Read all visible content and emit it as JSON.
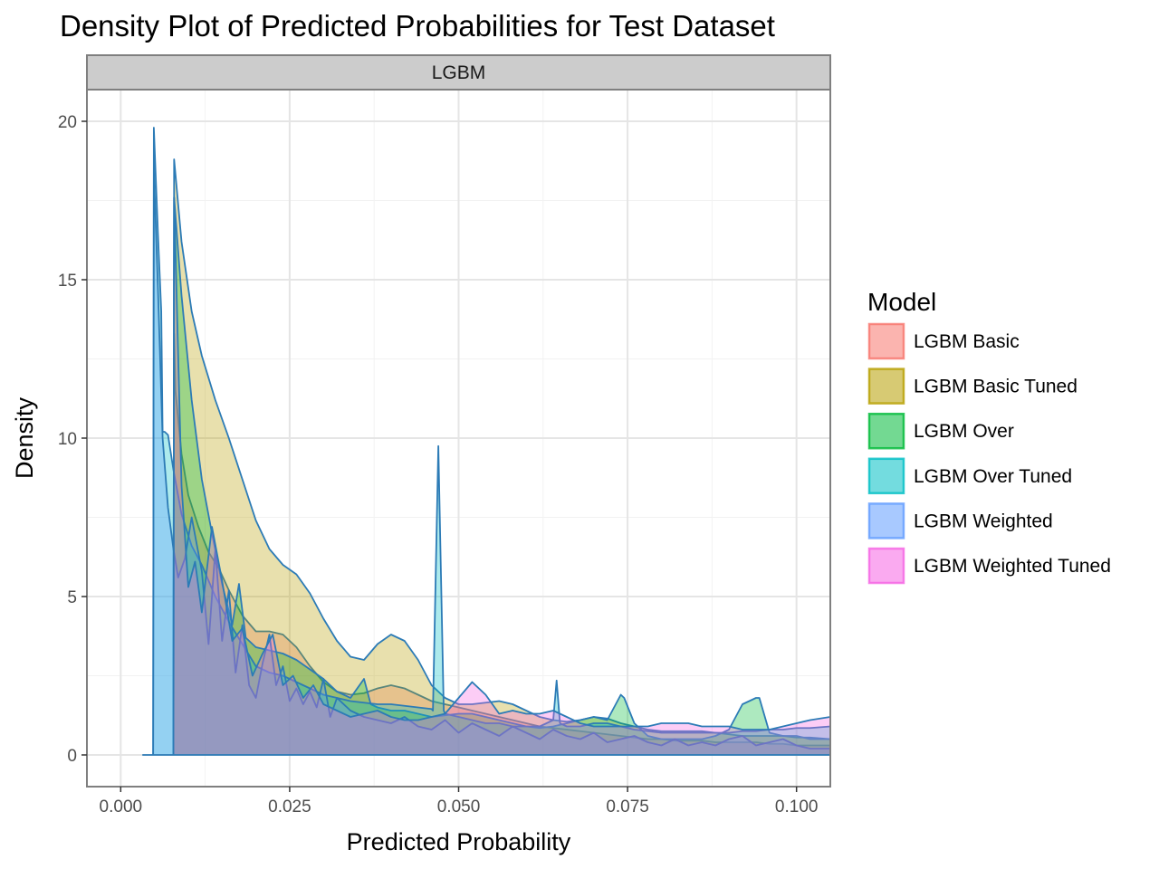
{
  "chart_data": {
    "type": "area",
    "title": "Density Plot of Predicted Probabilities for Test Dataset",
    "facet": "LGBM",
    "xlabel": "Predicted Probability",
    "ylabel": "Density",
    "xlim": [
      -0.005,
      0.105
    ],
    "ylim": [
      -1.0,
      21.0
    ],
    "x_ticks": [
      0.0,
      0.025,
      0.05,
      0.075,
      0.1
    ],
    "x_tick_labels": [
      "0.000",
      "0.025",
      "0.050",
      "0.075",
      "0.100"
    ],
    "y_ticks": [
      0,
      5,
      10,
      15,
      20
    ],
    "y_tick_labels": [
      "0",
      "5",
      "10",
      "15",
      "20"
    ],
    "grid": true,
    "legend_title": "Model",
    "legend_position": "right",
    "outline_color": "#2c7bb6",
    "series": [
      {
        "name": "LGBM Basic",
        "color": "#F8766D",
        "x": [
          0.0078,
          0.0079,
          0.0081,
          0.009,
          0.01,
          0.0115,
          0.013,
          0.0145,
          0.016,
          0.018,
          0.02,
          0.022,
          0.024,
          0.026,
          0.028,
          0.03,
          0.032,
          0.034,
          0.036,
          0.038,
          0.04,
          0.042,
          0.044,
          0.046,
          0.048,
          0.05,
          0.052,
          0.054,
          0.056,
          0.058,
          0.06,
          0.062,
          0.064,
          0.066,
          0.068,
          0.07,
          0.072,
          0.074,
          0.076,
          0.078,
          0.08,
          0.082,
          0.084,
          0.086,
          0.088,
          0.09,
          0.092,
          0.094,
          0.096,
          0.098,
          0.1,
          0.102,
          0.105
        ],
        "y": [
          0,
          13.3,
          11.5,
          9.5,
          8.2,
          7.2,
          6.4,
          5.9,
          5.2,
          4.4,
          3.9,
          3.9,
          3.8,
          3.4,
          2.8,
          2.3,
          2.0,
          1.9,
          1.95,
          2.1,
          2.2,
          2.1,
          1.9,
          1.7,
          1.6,
          1.5,
          1.4,
          1.3,
          1.2,
          1.1,
          1.0,
          0.9,
          0.85,
          0.8,
          0.75,
          0.7,
          0.65,
          0.6,
          0.55,
          0.5,
          0.5,
          0.45,
          0.45,
          0.45,
          0.4,
          0.4,
          0.4,
          0.4,
          0.35,
          0.35,
          0.3,
          0.3,
          0.3
        ]
      },
      {
        "name": "LGBM Basic Tuned",
        "color": "#B79F00",
        "x": [
          0.0078,
          0.0079,
          0.009,
          0.0105,
          0.012,
          0.014,
          0.016,
          0.018,
          0.02,
          0.022,
          0.024,
          0.026,
          0.028,
          0.03,
          0.032,
          0.034,
          0.036,
          0.038,
          0.04,
          0.042,
          0.044,
          0.046,
          0.048,
          0.05,
          0.052,
          0.054,
          0.056,
          0.058,
          0.06,
          0.062,
          0.064,
          0.066,
          0.068,
          0.07,
          0.072,
          0.074,
          0.076,
          0.078,
          0.08,
          0.082,
          0.084,
          0.086,
          0.088,
          0.09,
          0.092,
          0.094,
          0.096,
          0.098,
          0.1,
          0.102,
          0.105
        ],
        "y": [
          0,
          18.8,
          16.2,
          14.0,
          12.6,
          11.2,
          10.0,
          8.7,
          7.4,
          6.5,
          6.0,
          5.7,
          5.1,
          4.3,
          3.6,
          3.1,
          3.0,
          3.5,
          3.8,
          3.6,
          3.0,
          2.2,
          1.8,
          1.6,
          1.6,
          1.65,
          1.7,
          1.6,
          1.4,
          1.2,
          1.1,
          1.05,
          1.1,
          1.2,
          1.15,
          1.0,
          0.9,
          0.8,
          0.75,
          0.75,
          0.75,
          0.75,
          0.7,
          0.65,
          0.6,
          0.6,
          0.6,
          0.6,
          0.55,
          0.55,
          0.5
        ]
      },
      {
        "name": "LGBM Over",
        "color": "#00BA38",
        "x": [
          0.0078,
          0.0079,
          0.009,
          0.0105,
          0.012,
          0.0135,
          0.015,
          0.0165,
          0.0175,
          0.0185,
          0.02,
          0.022,
          0.024,
          0.026,
          0.028,
          0.03,
          0.032,
          0.034,
          0.036,
          0.037,
          0.038,
          0.04,
          0.042,
          0.044,
          0.046,
          0.048,
          0.05,
          0.052,
          0.054,
          0.056,
          0.058,
          0.06,
          0.062,
          0.064,
          0.066,
          0.068,
          0.07,
          0.072,
          0.074,
          0.0745,
          0.076,
          0.078,
          0.08,
          0.082,
          0.084,
          0.086,
          0.088,
          0.09,
          0.092,
          0.094,
          0.0945,
          0.096,
          0.098,
          0.1,
          0.102,
          0.105
        ],
        "y": [
          0,
          17.6,
          14.5,
          11.2,
          8.7,
          7.0,
          5.4,
          4.1,
          5.4,
          3.7,
          3.4,
          3.3,
          3.2,
          3.0,
          2.7,
          2.4,
          2.0,
          1.8,
          2.4,
          1.6,
          1.5,
          1.4,
          1.4,
          1.3,
          1.2,
          1.25,
          1.3,
          1.3,
          1.2,
          1.1,
          1.0,
          0.9,
          0.85,
          0.9,
          1.0,
          1.1,
          1.2,
          1.1,
          1.9,
          1.8,
          1.0,
          0.6,
          0.5,
          0.5,
          0.5,
          0.5,
          0.6,
          0.8,
          1.6,
          1.8,
          1.8,
          0.7,
          0.6,
          0.6,
          0.5,
          0.5
        ]
      },
      {
        "name": "LGBM Over Tuned",
        "color": "#00BFC4",
        "x": [
          0.0048,
          0.0049,
          0.0055,
          0.006,
          0.0062,
          0.0065,
          0.007,
          0.0078,
          0.009,
          0.0105,
          0.012,
          0.014,
          0.016,
          0.018,
          0.02,
          0.022,
          0.024,
          0.026,
          0.028,
          0.03,
          0.032,
          0.034,
          0.036,
          0.038,
          0.04,
          0.042,
          0.044,
          0.046,
          0.0462,
          0.047,
          0.0478,
          0.048,
          0.05,
          0.052,
          0.054,
          0.056,
          0.058,
          0.06,
          0.062,
          0.064,
          0.0645,
          0.065,
          0.066,
          0.068,
          0.07,
          0.072,
          0.074,
          0.076,
          0.078,
          0.08,
          0.082,
          0.084,
          0.086,
          0.088,
          0.09,
          0.092,
          0.094,
          0.096,
          0.098,
          0.1,
          0.102,
          0.105
        ],
        "y": [
          0,
          19.8,
          16.5,
          14.0,
          10.2,
          10.2,
          10.1,
          9.0,
          7.6,
          6.6,
          6.0,
          5.0,
          4.2,
          3.5,
          2.8,
          2.6,
          2.5,
          2.3,
          2.1,
          1.9,
          1.8,
          1.7,
          1.65,
          1.6,
          1.6,
          1.55,
          1.5,
          1.45,
          1.4,
          9.75,
          1.4,
          1.3,
          1.2,
          1.1,
          1.0,
          1.0,
          0.9,
          0.9,
          0.9,
          1.1,
          2.35,
          1.0,
          0.9,
          0.9,
          1.0,
          1.0,
          0.9,
          0.8,
          0.75,
          0.7,
          0.7,
          0.7,
          0.7,
          0.7,
          0.7,
          0.75,
          0.75,
          0.8,
          0.8,
          0.85,
          0.85,
          0.9
        ]
      },
      {
        "name": "LGBM Weighted",
        "color": "#619CFF",
        "x": [
          0.0048,
          0.0049,
          0.0055,
          0.0062,
          0.007,
          0.0078,
          0.0085,
          0.0095,
          0.0105,
          0.012,
          0.013,
          0.014,
          0.015,
          0.016,
          0.017,
          0.018,
          0.019,
          0.02,
          0.021,
          0.022,
          0.023,
          0.024,
          0.025,
          0.026,
          0.027,
          0.028,
          0.029,
          0.03,
          0.031,
          0.032,
          0.034,
          0.036,
          0.038,
          0.04,
          0.042,
          0.044,
          0.046,
          0.048,
          0.05,
          0.052,
          0.054,
          0.056,
          0.058,
          0.06,
          0.062,
          0.064,
          0.066,
          0.068,
          0.07,
          0.072,
          0.074,
          0.076,
          0.078,
          0.08,
          0.082,
          0.084,
          0.086,
          0.088,
          0.09,
          0.092,
          0.094,
          0.096,
          0.098,
          0.1,
          0.102,
          0.105
        ],
        "y": [
          0,
          18.5,
          14.8,
          10.0,
          7.8,
          6.5,
          5.6,
          6.2,
          7.5,
          5.8,
          3.5,
          6.5,
          3.6,
          5.2,
          2.6,
          4.1,
          2.2,
          1.8,
          2.9,
          3.8,
          2.2,
          2.8,
          1.7,
          2.1,
          1.6,
          2.0,
          1.5,
          2.4,
          1.2,
          1.8,
          1.4,
          1.2,
          1.1,
          1.0,
          1.2,
          0.9,
          0.8,
          1.1,
          0.7,
          1.0,
          0.8,
          0.6,
          0.9,
          0.7,
          0.5,
          0.8,
          0.6,
          0.5,
          0.7,
          0.4,
          0.5,
          0.6,
          0.4,
          0.3,
          0.5,
          0.3,
          0.4,
          0.3,
          0.5,
          0.6,
          0.3,
          0.4,
          0.5,
          0.3,
          0.2,
          0.2
        ]
      },
      {
        "name": "LGBM Weighted Tuned",
        "color": "#F564E3",
        "x": [
          0.0078,
          0.0079,
          0.009,
          0.01,
          0.011,
          0.012,
          0.0135,
          0.015,
          0.0165,
          0.018,
          0.0195,
          0.021,
          0.0225,
          0.024,
          0.0255,
          0.027,
          0.0285,
          0.03,
          0.032,
          0.034,
          0.036,
          0.038,
          0.04,
          0.042,
          0.044,
          0.046,
          0.048,
          0.05,
          0.052,
          0.054,
          0.056,
          0.058,
          0.06,
          0.062,
          0.064,
          0.066,
          0.068,
          0.07,
          0.072,
          0.074,
          0.076,
          0.078,
          0.08,
          0.082,
          0.084,
          0.086,
          0.088,
          0.09,
          0.092,
          0.094,
          0.096,
          0.098,
          0.1,
          0.102,
          0.105
        ],
        "y": [
          0,
          17.6,
          8.5,
          5.3,
          6.1,
          4.5,
          7.2,
          5.5,
          3.6,
          4.0,
          2.5,
          3.2,
          3.8,
          2.2,
          2.5,
          1.8,
          2.2,
          1.6,
          1.4,
          1.2,
          1.3,
          1.4,
          1.2,
          1.1,
          1.1,
          1.2,
          1.3,
          1.8,
          2.3,
          1.9,
          1.3,
          1.4,
          1.3,
          1.3,
          1.4,
          1.2,
          1.0,
          0.9,
          0.9,
          0.9,
          0.9,
          0.9,
          1.0,
          1.0,
          1.0,
          0.9,
          0.9,
          0.9,
          0.8,
          0.8,
          0.8,
          0.9,
          1.0,
          1.1,
          1.2
        ]
      }
    ]
  }
}
